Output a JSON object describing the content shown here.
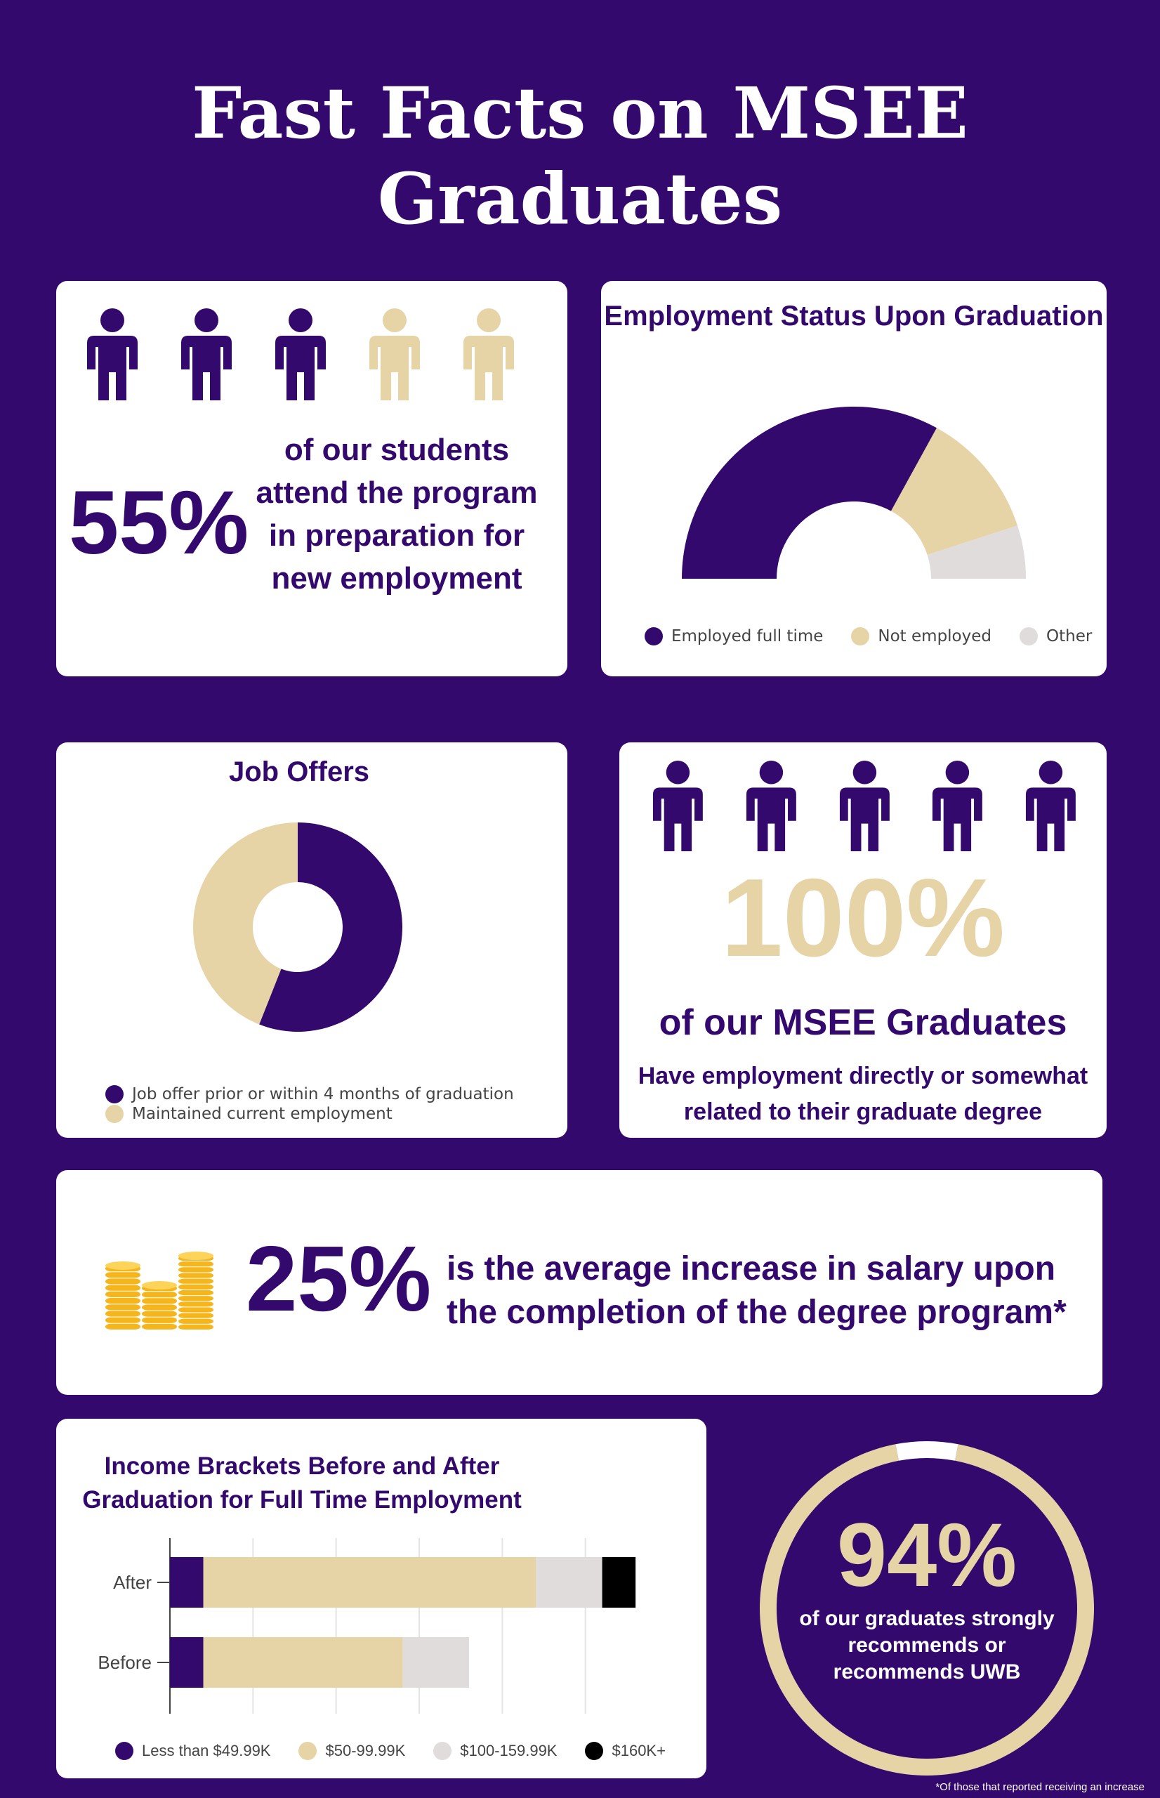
{
  "title": {
    "line1": "Fast Facts on MSEE",
    "line2": "Graduates"
  },
  "colors": {
    "purple": "#34096e",
    "gold": "#e6d3a6",
    "light_gray": "#e0dcdc",
    "black": "#000000",
    "coin": "#f7b51c"
  },
  "new_employment": {
    "percent": "55%",
    "text": [
      "of our students",
      "attend the program",
      "in preparation for",
      "new employment"
    ],
    "icons": [
      "person-icon",
      "person-icon",
      "person-icon",
      "person-icon",
      "person-icon"
    ],
    "filled_count": 3
  },
  "employment_status": {
    "title": "Employment Status Upon Graduation",
    "legend": [
      "Employed full time",
      "Not employed",
      "Other"
    ]
  },
  "job_offers": {
    "title": "Job Offers",
    "legend": [
      "Job offer prior or within 4 months of graduation",
      "Maintained current employment"
    ]
  },
  "related_employment": {
    "percent": "100%",
    "headline": "of our MSEE Graduates",
    "text": [
      "Have employment directly or somewhat",
      "related to their graduate degree"
    ]
  },
  "salary": {
    "percent": "25%",
    "text": [
      "is the average increase in salary upon",
      "the completion of the degree program*"
    ],
    "icon": "coin-stack-icon"
  },
  "income": {
    "title": [
      "Income Brackets Before and After",
      "Graduation for Full Time Employment"
    ],
    "legend": [
      "Less than $49.99K",
      "$50-99.99K",
      "$100-159.99K",
      "$160K+"
    ]
  },
  "recommend": {
    "percent": "94%",
    "text": [
      "of our graduates strongly",
      "recommends or",
      "recommends UWB"
    ]
  },
  "footnote": "*Of those that  reported receiving an increase",
  "chart_data": [
    {
      "type": "pie",
      "variant": "half-donut",
      "title": "Employment Status Upon Graduation",
      "categories": [
        "Employed full time",
        "Not employed",
        "Other"
      ],
      "values": [
        66,
        24,
        10
      ],
      "colors": [
        "#34096e",
        "#e6d3a6",
        "#e0dcdc"
      ],
      "legend": "bottom"
    },
    {
      "type": "pie",
      "variant": "donut",
      "title": "Job Offers",
      "categories": [
        "Job offer prior or within 4 months of graduation",
        "Maintained current employment"
      ],
      "values": [
        56,
        44
      ],
      "colors": [
        "#34096e",
        "#e6d3a6"
      ],
      "legend": "bottom-left"
    },
    {
      "type": "bar",
      "orientation": "horizontal",
      "stacked": true,
      "title": "Income Brackets Before and After Graduation for Full Time Employment",
      "categories": [
        "After",
        "Before"
      ],
      "series": [
        {
          "name": "Less than $49.99K",
          "values": [
            6.7,
            6.7
          ],
          "color": "#34096e"
        },
        {
          "name": "$50-99.99K",
          "values": [
            66.7,
            40
          ],
          "color": "#e6d3a6"
        },
        {
          "name": "$100-159.99K",
          "values": [
            13.3,
            13.3
          ],
          "color": "#e0dcdc"
        },
        {
          "name": "$160K+",
          "values": [
            6.7,
            0
          ],
          "color": "#000000"
        }
      ],
      "xlim": [
        0,
        100
      ],
      "grid": true,
      "legend": "bottom"
    },
    {
      "type": "pie",
      "variant": "ring",
      "categories": [
        "Strongly recommends or recommends",
        "Other"
      ],
      "values": [
        94,
        6
      ],
      "colors": [
        "#e6d3a6",
        "#ffffff"
      ]
    }
  ]
}
